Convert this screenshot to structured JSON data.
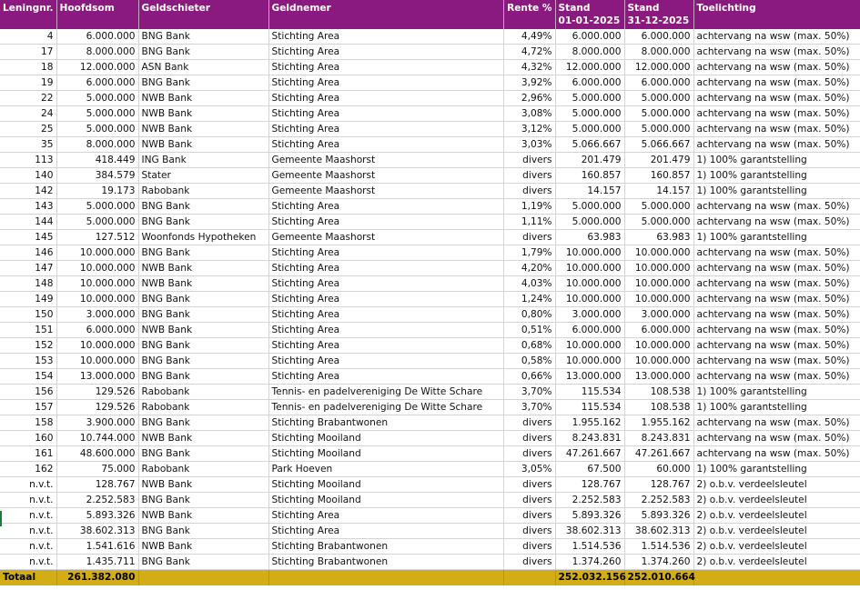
{
  "columns": [
    "Leningnr.",
    "Hoofdsom",
    "Geldschieter",
    "Geldnemer",
    "Rente %",
    "Stand\n01-01-2025",
    "Stand\n31-12-2025",
    "Toelichting"
  ],
  "rows": [
    [
      "4",
      "6.000.000",
      "BNG Bank",
      "Stichting Area",
      "4,49%",
      "6.000.000",
      "6.000.000",
      "achtervang na wsw (max. 50%)"
    ],
    [
      "17",
      "8.000.000",
      "BNG Bank",
      "Stichting Area",
      "4,72%",
      "8.000.000",
      "8.000.000",
      "achtervang na wsw (max. 50%)"
    ],
    [
      "18",
      "12.000.000",
      "ASN Bank",
      "Stichting Area",
      "4,32%",
      "12.000.000",
      "12.000.000",
      "achtervang na wsw (max. 50%)"
    ],
    [
      "19",
      "6.000.000",
      "BNG Bank",
      "Stichting Area",
      "3,92%",
      "6.000.000",
      "6.000.000",
      "achtervang na wsw (max. 50%)"
    ],
    [
      "22",
      "5.000.000",
      "NWB Bank",
      "Stichting Area",
      "2,96%",
      "5.000.000",
      "5.000.000",
      "achtervang na wsw (max. 50%)"
    ],
    [
      "24",
      "5.000.000",
      "NWB Bank",
      "Stichting Area",
      "3,08%",
      "5.000.000",
      "5.000.000",
      "achtervang na wsw (max. 50%)"
    ],
    [
      "25",
      "5.000.000",
      "NWB Bank",
      "Stichting Area",
      "3,12%",
      "5.000.000",
      "5.000.000",
      "achtervang na wsw (max. 50%)"
    ],
    [
      "35",
      "8.000.000",
      "NWB Bank",
      "Stichting Area",
      "3,03%",
      "5.066.667",
      "5.066.667",
      "achtervang na wsw (max. 50%)"
    ],
    [
      "113",
      "418.449",
      "ING Bank",
      "Gemeente Maashorst",
      "divers",
      "201.479",
      "201.479",
      "1) 100% garantstelling"
    ],
    [
      "140",
      "384.579",
      "Stater",
      "Gemeente Maashorst",
      "divers",
      "160.857",
      "160.857",
      "1) 100% garantstelling"
    ],
    [
      "142",
      "19.173",
      "Rabobank",
      "Gemeente Maashorst",
      "divers",
      "14.157",
      "14.157",
      "1) 100% garantstelling"
    ],
    [
      "143",
      "5.000.000",
      "BNG Bank",
      "Stichting Area",
      "1,19%",
      "5.000.000",
      "5.000.000",
      "achtervang na wsw (max. 50%)"
    ],
    [
      "144",
      "5.000.000",
      "BNG Bank",
      "Stichting Area",
      "1,11%",
      "5.000.000",
      "5.000.000",
      "achtervang na wsw (max. 50%)"
    ],
    [
      "145",
      "127.512",
      "Woonfonds Hypotheken",
      "Gemeente Maashorst",
      "divers",
      "63.983",
      "63.983",
      "1) 100% garantstelling"
    ],
    [
      "146",
      "10.000.000",
      "BNG Bank",
      "Stichting Area",
      "1,79%",
      "10.000.000",
      "10.000.000",
      "achtervang na wsw (max. 50%)"
    ],
    [
      "147",
      "10.000.000",
      "NWB Bank",
      "Stichting Area",
      "4,20%",
      "10.000.000",
      "10.000.000",
      "achtervang na wsw (max. 50%)"
    ],
    [
      "148",
      "10.000.000",
      "NWB Bank",
      "Stichting Area",
      "4,03%",
      "10.000.000",
      "10.000.000",
      "achtervang na wsw (max. 50%)"
    ],
    [
      "149",
      "10.000.000",
      "BNG Bank",
      "Stichting Area",
      "1,24%",
      "10.000.000",
      "10.000.000",
      "achtervang na wsw (max. 50%)"
    ],
    [
      "150",
      "3.000.000",
      "BNG Bank",
      "Stichting Area",
      "0,80%",
      "3.000.000",
      "3.000.000",
      "achtervang na wsw (max. 50%)"
    ],
    [
      "151",
      "6.000.000",
      "NWB Bank",
      "Stichting Area",
      "0,51%",
      "6.000.000",
      "6.000.000",
      "achtervang na wsw (max. 50%)"
    ],
    [
      "152",
      "10.000.000",
      "BNG Bank",
      "Stichting Area",
      "0,68%",
      "10.000.000",
      "10.000.000",
      "achtervang na wsw (max. 50%)"
    ],
    [
      "153",
      "10.000.000",
      "BNG Bank",
      "Stichting Area",
      "0,58%",
      "10.000.000",
      "10.000.000",
      "achtervang na wsw (max. 50%)"
    ],
    [
      "154",
      "13.000.000",
      "BNG Bank",
      "Stichting Area",
      "0,66%",
      "13.000.000",
      "13.000.000",
      "achtervang na wsw (max. 50%)"
    ],
    [
      "156",
      "129.526",
      "Rabobank",
      "Tennis- en padelvereniging De Witte Schare",
      "3,70%",
      "115.534",
      "108.538",
      "1) 100% garantstelling"
    ],
    [
      "157",
      "129.526",
      "Rabobank",
      "Tennis- en padelvereniging De Witte Schare",
      "3,70%",
      "115.534",
      "108.538",
      "1) 100% garantstelling"
    ],
    [
      "158",
      "3.900.000",
      "BNG Bank",
      "Stichting Brabantwonen",
      "divers",
      "1.955.162",
      "1.955.162",
      "achtervang na wsw (max. 50%)"
    ],
    [
      "160",
      "10.744.000",
      "NWB Bank",
      "Stichting Mooiland",
      "divers",
      "8.243.831",
      "8.243.831",
      "achtervang na wsw (max. 50%)"
    ],
    [
      "161",
      "48.600.000",
      "BNG Bank",
      "Stichting Mooiland",
      "divers",
      "47.261.667",
      "47.261.667",
      "achtervang na wsw (max. 50%)"
    ],
    [
      "162",
      "75.000",
      "Rabobank",
      "Park Hoeven",
      "3,05%",
      "67.500",
      "60.000",
      "1) 100% garantstelling"
    ],
    [
      "n.v.t.",
      "128.767",
      "NWB Bank",
      "Stichting Mooiland",
      "divers",
      "128.767",
      "128.767",
      "2) o.b.v. verdeelsleutel"
    ],
    [
      "n.v.t.",
      "2.252.583",
      "BNG Bank",
      "Stichting Mooiland",
      "divers",
      "2.252.583",
      "2.252.583",
      "2) o.b.v. verdeelsleutel"
    ],
    [
      "n.v.t.",
      "5.893.326",
      "NWB Bank",
      "Stichting Area",
      "divers",
      "5.893.326",
      "5.893.326",
      "2) o.b.v. verdeelsleutel"
    ],
    [
      "n.v.t.",
      "38.602.313",
      "BNG Bank",
      "Stichting Area",
      "divers",
      "38.602.313",
      "38.602.313",
      "2) o.b.v. verdeelsleutel"
    ],
    [
      "n.v.t.",
      "1.541.616",
      "NWB Bank",
      "Stichting Brabantwonen",
      "divers",
      "1.514.536",
      "1.514.536",
      "2) o.b.v. verdeelsleutel"
    ],
    [
      "n.v.t.",
      "1.435.711",
      "BNG Bank",
      "Stichting Brabantwonen",
      "divers",
      "1.374.260",
      "1.374.260",
      "2) o.b.v. verdeelsleutel"
    ]
  ],
  "total": {
    "label": "Totaal",
    "hoofdsom": "261.382.080",
    "stand_begin": "252.032.156",
    "stand_eind": "252.010.664"
  },
  "colors": {
    "header": "#8b1a80",
    "total_row": "#d2ad15"
  }
}
